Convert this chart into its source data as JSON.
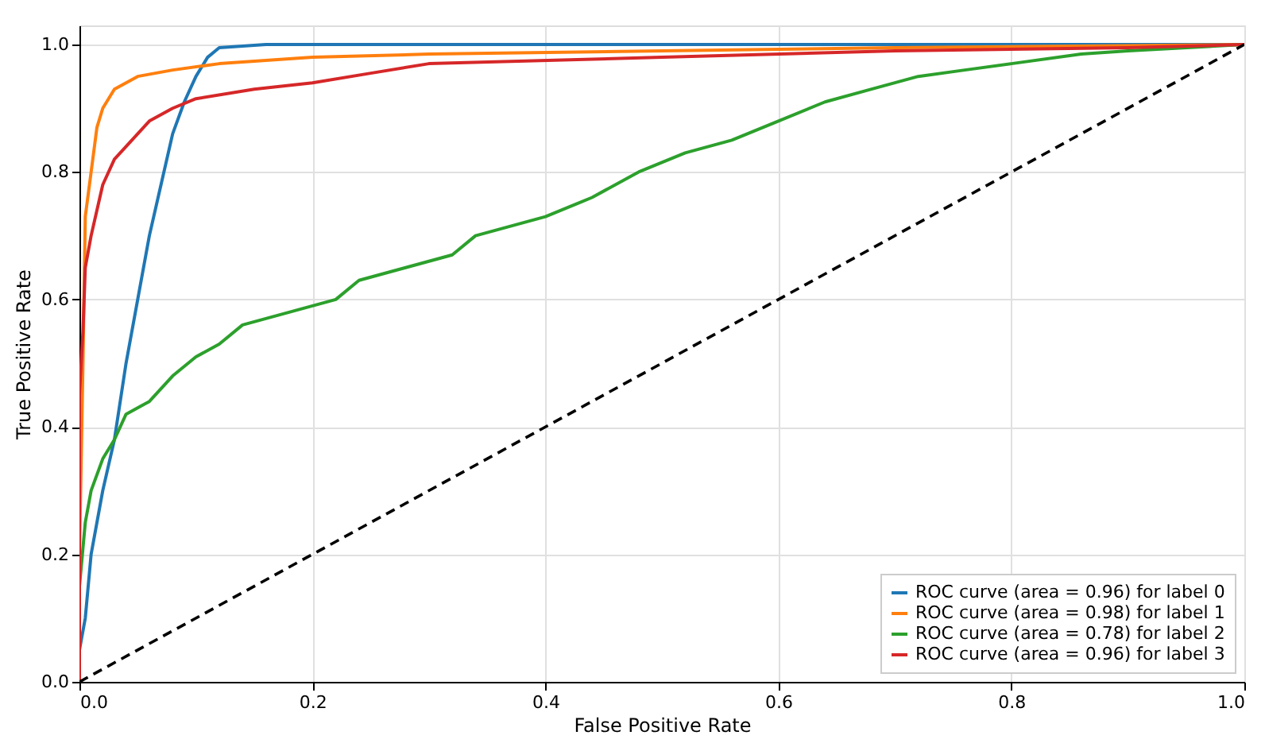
{
  "chart_data": {
    "type": "line",
    "xlabel": "False Positive Rate",
    "ylabel": "True Positive Rate",
    "xlim": [
      0,
      1
    ],
    "ylim": [
      0,
      1.03
    ],
    "xticks": [
      {
        "value": 0,
        "label": "0.0"
      },
      0.2,
      0.4,
      0.6,
      0.8,
      {
        "value": 1,
        "label": "1.0"
      }
    ],
    "yticks": [
      {
        "value": 0,
        "label": "0.0"
      },
      0.2,
      0.4,
      0.6,
      0.8,
      {
        "value": 1,
        "label": "1.0"
      }
    ],
    "grid": true,
    "legend": "bottom right",
    "line_style": "solid",
    "marker": "none",
    "series": [
      {
        "name": "ROC curve (area = 0.96) for label 0",
        "color": "#1f77b4",
        "x": [
          0,
          0.005,
          0.01,
          0.02,
          0.03,
          0.04,
          0.05,
          0.06,
          0.07,
          0.08,
          0.09,
          0.1,
          0.11,
          0.12,
          0.16,
          1
        ],
        "values": [
          0.05,
          0.1,
          0.2,
          0.3,
          0.38,
          0.5,
          0.6,
          0.7,
          0.78,
          0.86,
          0.91,
          0.95,
          0.98,
          0.995,
          1,
          1
        ]
      },
      {
        "name": "ROC curve (area = 0.98) for label 1",
        "color": "#ff7f0e",
        "x": [
          0,
          0,
          0.003,
          0.005,
          0.01,
          0.015,
          0.02,
          0.03,
          0.05,
          0.08,
          0.12,
          0.2,
          0.3,
          0.5,
          0.7,
          1
        ],
        "values": [
          0,
          0.2,
          0.5,
          0.73,
          0.8,
          0.87,
          0.9,
          0.93,
          0.95,
          0.96,
          0.97,
          0.98,
          0.985,
          0.99,
          0.995,
          1
        ]
      },
      {
        "name": "ROC curve (area = 0.78) for label 2",
        "color": "#2ca02c",
        "x": [
          0,
          0,
          0.005,
          0.01,
          0.02,
          0.03,
          0.04,
          0.06,
          0.08,
          0.1,
          0.12,
          0.14,
          0.18,
          0.2,
          0.22,
          0.24,
          0.28,
          0.32,
          0.34,
          0.38,
          0.4,
          0.44,
          0.48,
          0.52,
          0.56,
          0.6,
          0.64,
          0.68,
          0.72,
          0.76,
          0.8,
          0.86,
          0.9,
          1
        ],
        "values": [
          0,
          0.15,
          0.25,
          0.3,
          0.35,
          0.38,
          0.42,
          0.44,
          0.48,
          0.51,
          0.53,
          0.56,
          0.58,
          0.59,
          0.6,
          0.63,
          0.65,
          0.67,
          0.7,
          0.72,
          0.73,
          0.76,
          0.8,
          0.83,
          0.85,
          0.88,
          0.91,
          0.93,
          0.95,
          0.96,
          0.97,
          0.985,
          0.99,
          1
        ]
      },
      {
        "name": "ROC curve (area = 0.96) for label 3",
        "color": "#d62728",
        "x": [
          0,
          0,
          0.003,
          0.005,
          0.01,
          0.02,
          0.03,
          0.04,
          0.06,
          0.08,
          0.1,
          0.15,
          0.2,
          0.25,
          0.3,
          0.5,
          0.7,
          0.9,
          1
        ],
        "values": [
          0,
          0.45,
          0.55,
          0.65,
          0.7,
          0.78,
          0.82,
          0.84,
          0.88,
          0.9,
          0.915,
          0.93,
          0.94,
          0.955,
          0.97,
          0.98,
          0.99,
          0.995,
          1
        ]
      },
      {
        "color": "#000000",
        "line_style": "dashed",
        "x": [
          0,
          1
        ],
        "values": [
          0,
          1
        ]
      }
    ]
  }
}
